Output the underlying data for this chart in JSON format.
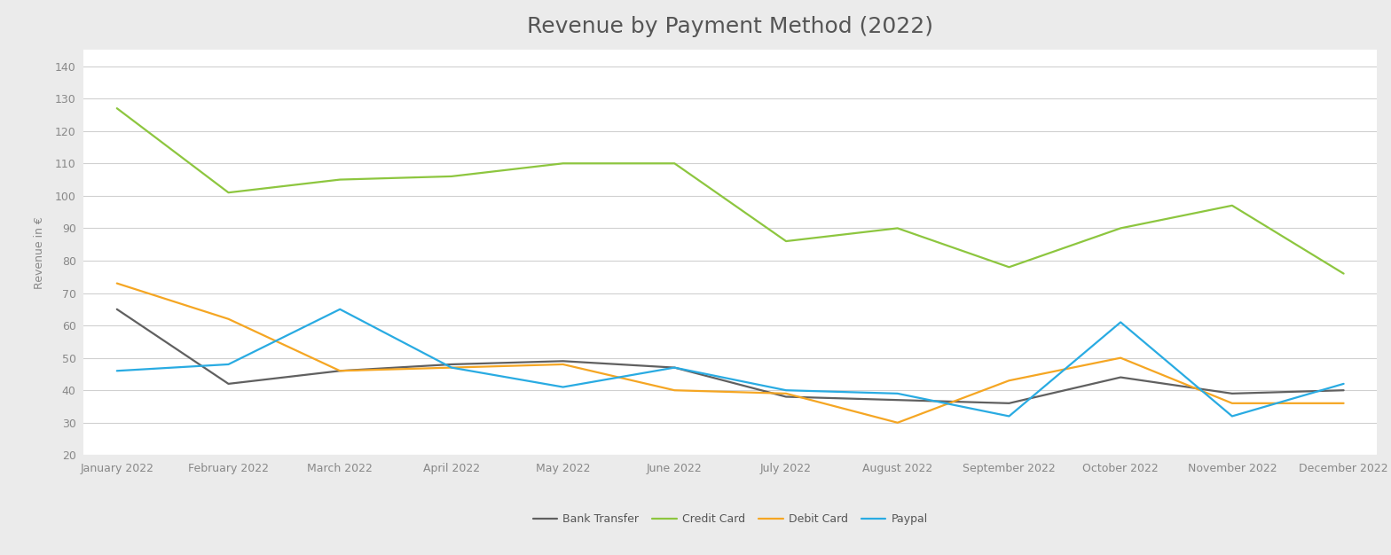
{
  "title": "Revenue by Payment Method (2022)",
  "ylabel": "Revenue in €",
  "categories": [
    "January 2022",
    "February 2022",
    "March 2022",
    "April 2022",
    "May 2022",
    "June 2022",
    "July 2022",
    "August 2022",
    "September 2022",
    "October 2022",
    "November 2022",
    "December 2022"
  ],
  "series": {
    "Bank Transfer": {
      "values": [
        65,
        42,
        46,
        48,
        49,
        47,
        38,
        37,
        36,
        44,
        39,
        40
      ],
      "color": "#606060"
    },
    "Credit Card": {
      "values": [
        127,
        101,
        105,
        106,
        110,
        110,
        86,
        90,
        78,
        90,
        97,
        76
      ],
      "color": "#8DC63F"
    },
    "Debit Card": {
      "values": [
        73,
        62,
        46,
        47,
        48,
        40,
        39,
        30,
        43,
        50,
        36,
        36
      ],
      "color": "#F5A623"
    },
    "Paypal": {
      "values": [
        46,
        48,
        65,
        47,
        41,
        47,
        40,
        39,
        32,
        61,
        32,
        42
      ],
      "color": "#29ABE2"
    }
  },
  "ylim": [
    20,
    145
  ],
  "yticks": [
    20,
    30,
    40,
    50,
    60,
    70,
    80,
    90,
    100,
    110,
    120,
    130,
    140
  ],
  "figure_background": "#ebebeb",
  "plot_background": "#ffffff",
  "grid_color": "#d0d0d0",
  "title_fontsize": 18,
  "tick_fontsize": 9,
  "label_fontsize": 9,
  "legend_fontsize": 9,
  "linewidth": 1.6,
  "title_color": "#555555",
  "tick_color": "#888888",
  "ylabel_color": "#888888"
}
